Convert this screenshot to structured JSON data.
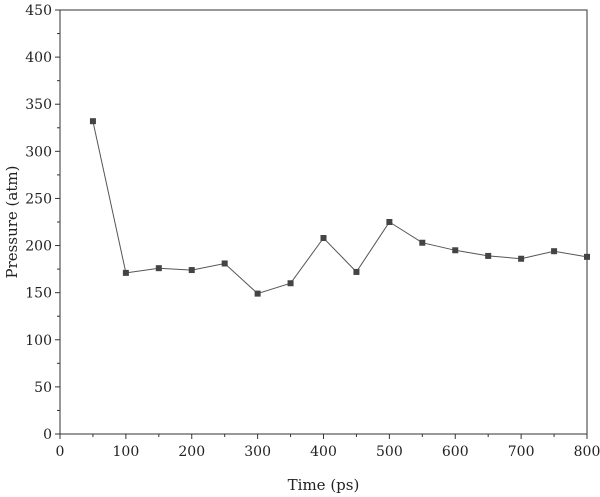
{
  "chart_data": {
    "type": "line",
    "xlabel": "Time (ps)",
    "ylabel": "Pressure (atm)",
    "xlim": [
      0,
      800
    ],
    "ylim": [
      0,
      450
    ],
    "xticks": [
      0,
      100,
      200,
      300,
      400,
      500,
      600,
      700,
      800
    ],
    "yticks": [
      0,
      50,
      100,
      150,
      200,
      250,
      300,
      350,
      400,
      450
    ],
    "grid": false,
    "marker": "square",
    "colors": {
      "series": "#555555",
      "marker": "#444444",
      "axis": "#333333"
    },
    "series": [
      {
        "x": [
          50,
          100,
          150,
          200,
          250,
          300,
          350,
          400,
          450,
          500,
          550,
          600,
          650,
          700,
          750,
          800
        ],
        "y": [
          332,
          171,
          176,
          174,
          181,
          149,
          160,
          208,
          172,
          225,
          203,
          195,
          189,
          186,
          194,
          188
        ]
      }
    ]
  }
}
